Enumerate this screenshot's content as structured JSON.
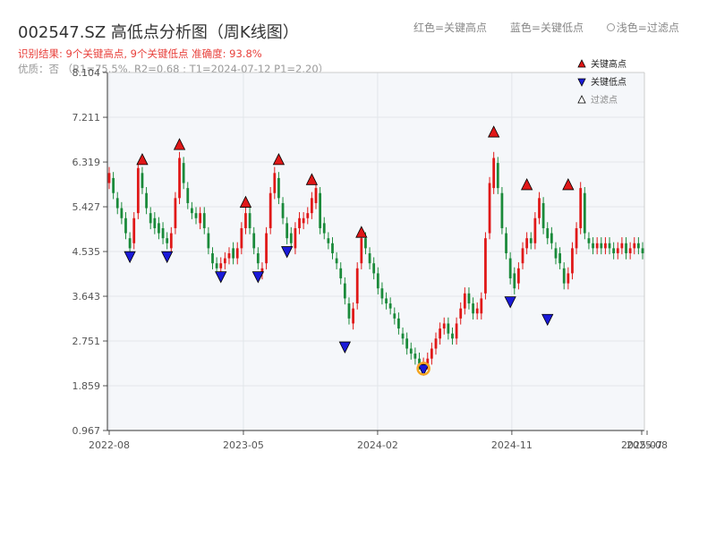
{
  "header": {
    "title": "002547.SZ 高低点分析图（周K线图）",
    "subtitle": "识别结果: 9个关键高点, 9个关键低点  准确度: 93.8%",
    "subtitle2": "优质：否 （R1=75.5%, R2=0.68 ; T1=2024-07-12 P1=2.20）"
  },
  "top_legend": [
    "红色=关键高点",
    "蓝色=关键低点",
    "浅色=过滤点"
  ],
  "colors": {
    "up": "#e01818",
    "down": "#1a8a3a",
    "high": "#e01818",
    "low": "#1a1ad8",
    "filtered": "#f5a623"
  },
  "chart_data": {
    "type": "candlestick",
    "ylim": [
      0.967,
      8.104
    ],
    "yticks": [
      "0.967",
      "1.859",
      "2.751",
      "3.643",
      "4.535",
      "5.427",
      "6.319",
      "7.211",
      "8.104"
    ],
    "xticks": [
      "2022-08",
      "2023-05",
      "2024-02",
      "2024-11",
      "2025-07",
      "2025-08"
    ],
    "legend": {
      "position": "top-right",
      "entries": [
        "关键高点",
        "关键低点",
        "过滤点"
      ]
    },
    "grid": true,
    "weekly_close": [
      6.1,
      5.7,
      5.4,
      5.2,
      4.9,
      4.6,
      5.2,
      6.2,
      5.8,
      5.4,
      5.1,
      5.0,
      4.9,
      4.8,
      4.7,
      4.9,
      5.6,
      6.4,
      5.9,
      5.5,
      5.3,
      5.2,
      5.3,
      5.0,
      4.6,
      4.3,
      4.2,
      4.3,
      4.4,
      4.5,
      4.4,
      4.6,
      5.0,
      5.3,
      5.0,
      4.6,
      4.3,
      4.2,
      4.9,
      5.7,
      6.1,
      5.6,
      5.2,
      4.8,
      4.7,
      5.0,
      5.2,
      5.2,
      5.3,
      5.6,
      5.8,
      5.0,
      4.9,
      4.7,
      4.5,
      4.3,
      4.0,
      3.6,
      3.2,
      3.4,
      4.2,
      4.8,
      4.6,
      4.3,
      4.1,
      3.8,
      3.6,
      3.5,
      3.4,
      3.2,
      3.0,
      2.8,
      2.6,
      2.5,
      2.4,
      2.3,
      2.3,
      2.4,
      2.6,
      2.8,
      3.0,
      3.1,
      2.9,
      2.8,
      3.1,
      3.4,
      3.7,
      3.5,
      3.3,
      3.4,
      3.6,
      4.8,
      5.9,
      6.4,
      5.8,
      5.0,
      4.5,
      4.0,
      3.8,
      4.2,
      4.6,
      4.8,
      4.7,
      5.2,
      5.6,
      5.0,
      4.8,
      4.7,
      4.4,
      4.3,
      3.9,
      4.1,
      4.6,
      5.0,
      5.8,
      4.9,
      4.7,
      4.6,
      4.7,
      4.6,
      4.7,
      4.6,
      4.5,
      4.6,
      4.7,
      4.5,
      4.6,
      4.7,
      4.6,
      4.5
    ],
    "weekly_open": [
      5.9,
      6.0,
      5.6,
      5.4,
      5.2,
      4.8,
      4.7,
      5.3,
      6.1,
      5.7,
      5.3,
      5.2,
      5.1,
      5.0,
      4.8,
      4.6,
      5.0,
      5.6,
      6.3,
      5.8,
      5.4,
      5.3,
      5.1,
      5.3,
      4.9,
      4.5,
      4.3,
      4.2,
      4.3,
      4.4,
      4.6,
      4.4,
      4.6,
      5.0,
      5.3,
      4.9,
      4.5,
      4.1,
      4.3,
      5.0,
      5.7,
      6.0,
      5.5,
      5.1,
      4.9,
      4.6,
      5.0,
      5.1,
      5.2,
      5.3,
      5.5,
      5.7,
      5.1,
      4.8,
      4.7,
      4.4,
      4.2,
      3.9,
      3.5,
      3.1,
      3.5,
      4.3,
      4.8,
      4.5,
      4.3,
      4.1,
      3.8,
      3.6,
      3.5,
      3.3,
      3.2,
      2.9,
      2.8,
      2.6,
      2.5,
      2.4,
      2.2,
      2.3,
      2.4,
      2.6,
      2.8,
      3.0,
      3.1,
      2.9,
      2.8,
      3.2,
      3.4,
      3.7,
      3.5,
      3.3,
      3.3,
      3.7,
      4.9,
      5.8,
      6.3,
      5.7,
      4.9,
      4.4,
      4.1,
      3.9,
      4.3,
      4.6,
      4.8,
      4.7,
      5.2,
      5.5,
      5.0,
      4.9,
      4.6,
      4.5,
      4.2,
      3.9,
      4.1,
      4.6,
      5.0,
      5.7,
      4.8,
      4.7,
      4.6,
      4.7,
      4.6,
      4.7,
      4.6,
      4.5,
      4.6,
      4.7,
      4.5,
      4.6,
      4.7,
      4.6
    ],
    "key_highs": [
      {
        "label": "关键高点",
        "week": 8,
        "price": 6.25
      },
      {
        "label": "关键高点",
        "week": 17,
        "price": 6.55
      },
      {
        "label": "关键高点",
        "week": 33,
        "price": 5.4
      },
      {
        "label": "关键高点",
        "week": 41,
        "price": 6.25
      },
      {
        "label": "关键高点",
        "week": 49,
        "price": 5.85
      },
      {
        "label": "关键高点",
        "week": 61,
        "price": 4.8
      },
      {
        "label": "关键高点",
        "week": 93,
        "price": 6.8
      },
      {
        "label": "关键高点",
        "week": 101,
        "price": 5.75
      },
      {
        "label": "关键高点",
        "week": 111,
        "price": 5.75
      }
    ],
    "key_lows": [
      {
        "label": "关键低点",
        "week": 5,
        "price": 4.55
      },
      {
        "label": "关键低点",
        "week": 14,
        "price": 4.55
      },
      {
        "label": "关键低点",
        "week": 27,
        "price": 4.15
      },
      {
        "label": "关键低点",
        "week": 36,
        "price": 4.15
      },
      {
        "label": "关键低点",
        "week": 43,
        "price": 4.65
      },
      {
        "label": "关键低点",
        "week": 57,
        "price": 2.75
      },
      {
        "label": "关键低点",
        "week": 76,
        "price": 2.3
      },
      {
        "label": "关键低点",
        "week": 97,
        "price": 3.65
      },
      {
        "label": "关键低点",
        "week": 106,
        "price": 3.3
      }
    ],
    "filtered_points": [
      {
        "label": "过滤点",
        "week": 76,
        "price": 2.2
      }
    ]
  }
}
